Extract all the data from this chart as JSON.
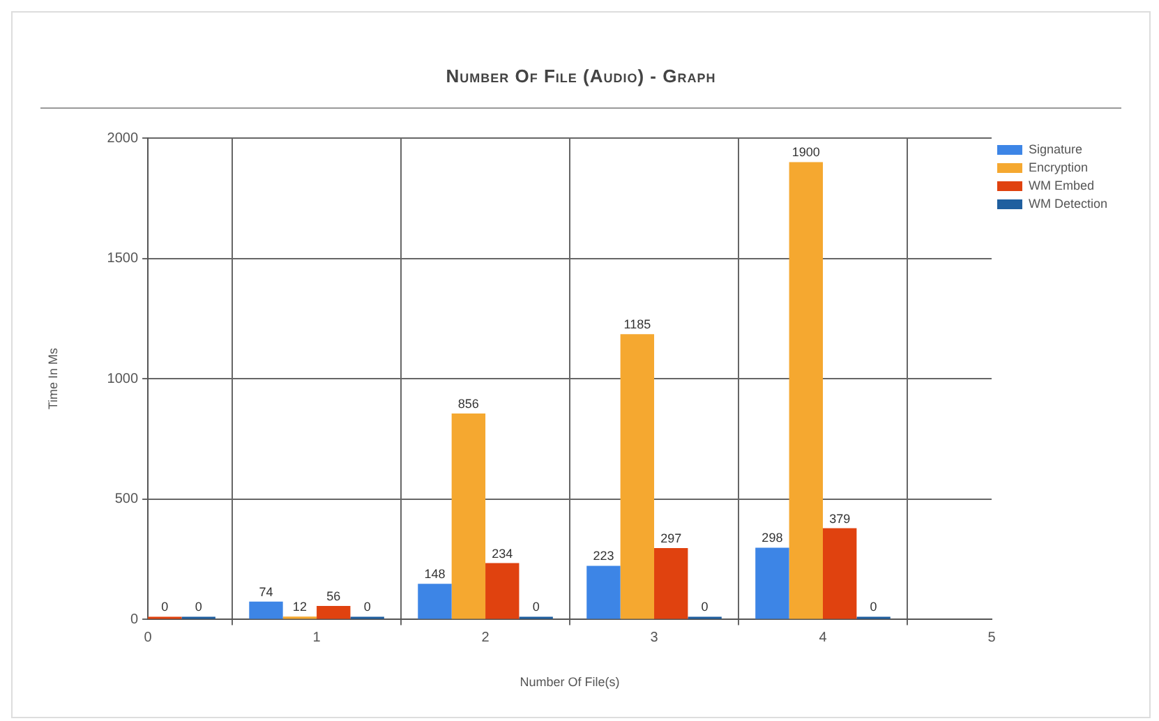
{
  "chart_data": {
    "type": "bar",
    "title": "Number Of File (Audio) - Graph",
    "xlabel": "Number Of File(s)",
    "ylabel": "Time In Ms",
    "x": [
      0,
      1,
      2,
      3,
      4
    ],
    "series": [
      {
        "name": "Signature",
        "color": "#3d85e6",
        "values": [
          0,
          74,
          148,
          223,
          298
        ],
        "value_labels": [
          null,
          "74",
          "148",
          "223",
          "298"
        ]
      },
      {
        "name": "Encryption",
        "color": "#f5a830",
        "values": [
          0,
          12,
          856,
          1185,
          1900
        ],
        "value_labels": [
          null,
          "12",
          "856",
          "1185",
          "1900"
        ]
      },
      {
        "name": "WM Embed",
        "color": "#e0420f",
        "values": [
          0,
          56,
          234,
          297,
          379
        ],
        "value_labels": [
          "0",
          "56",
          "234",
          "297",
          "379"
        ]
      },
      {
        "name": "WM Detection",
        "color": "#1f5f9f",
        "values": [
          0,
          0,
          0,
          0,
          0
        ],
        "value_labels": [
          "0",
          "0",
          "0",
          "0",
          "0"
        ]
      }
    ],
    "xlim": [
      0,
      5
    ],
    "xticks": [
      0,
      1,
      2,
      3,
      4,
      5
    ],
    "ylim": [
      0,
      2000
    ],
    "yticks": [
      0,
      500,
      1000,
      1500,
      2000
    ],
    "grid": true,
    "legend": "top right"
  }
}
